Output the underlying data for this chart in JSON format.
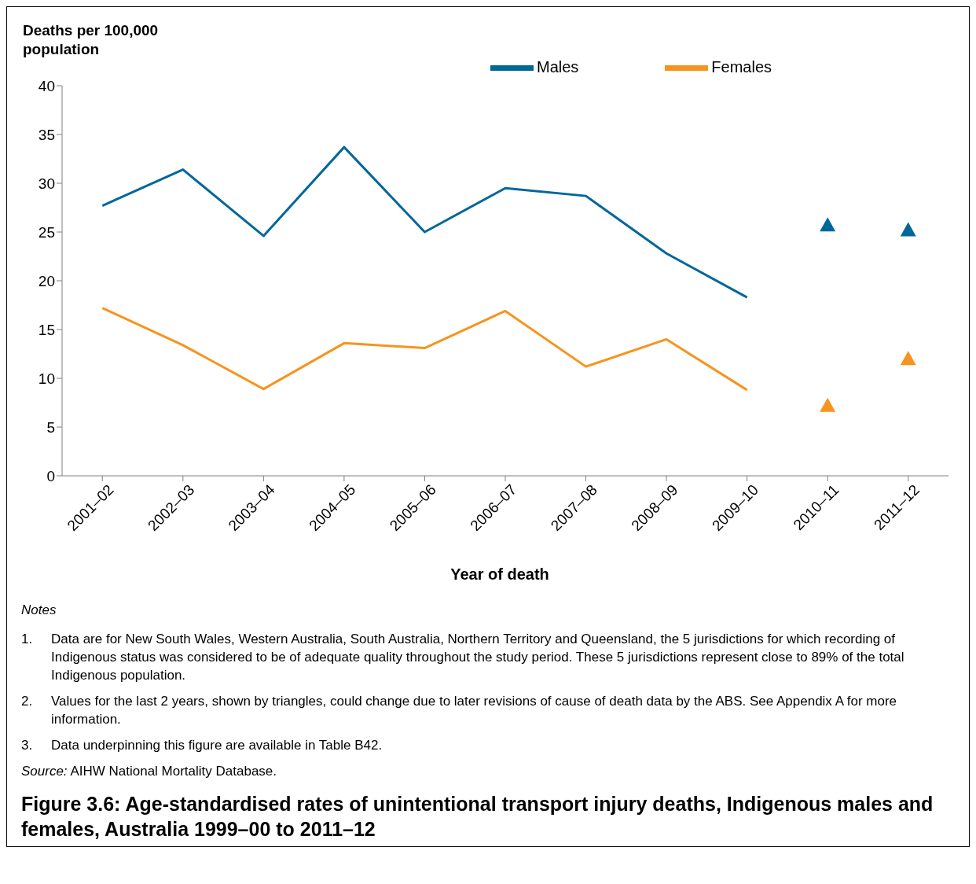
{
  "chart_data": {
    "type": "line",
    "title": "Figure 3.6: Age-standardised rates of unintentional transport injury deaths, Indigenous males and females, Australia 1999–00 to 2011–12",
    "ylabel": "Deaths per 100,000 population",
    "xlabel": "Year of death",
    "categories": [
      "2001–02",
      "2002–03",
      "2003–04",
      "2004–05",
      "2005–06",
      "2006–07",
      "2007–08",
      "2008–09",
      "2009–10",
      "2010–11",
      "2011–12"
    ],
    "series": [
      {
        "name": "Males",
        "marker": "none",
        "color": "#00679b",
        "values": [
          27.7,
          31.4,
          24.6,
          33.7,
          25.0,
          29.5,
          28.7,
          22.8,
          18.3,
          null,
          null
        ]
      },
      {
        "name": "Females",
        "marker": "none",
        "color": "#f7941d",
        "values": [
          17.2,
          13.4,
          8.9,
          13.6,
          13.1,
          16.9,
          11.2,
          14.0,
          8.8,
          null,
          null
        ]
      },
      {
        "type": "scatter",
        "marker": "triangle",
        "color": "#00679b",
        "values": [
          null,
          null,
          null,
          null,
          null,
          null,
          null,
          null,
          null,
          25.7,
          25.2
        ]
      },
      {
        "type": "scatter",
        "marker": "triangle",
        "color": "#f7941d",
        "values": [
          null,
          null,
          null,
          null,
          null,
          null,
          null,
          null,
          null,
          7.2,
          12.0
        ]
      }
    ],
    "ylim": [
      0,
      40
    ],
    "yticks": [
      0,
      5,
      10,
      15,
      20,
      25,
      30,
      35,
      40
    ],
    "grid": false,
    "legend": "top",
    "annotations": [
      "Notes",
      "1. Data are for New South Wales, Western Australia, South Australia, Northern Territory and Queensland, the 5 jurisdictions for which recording of Indigenous status was considered to be of adequate quality throughout the study period. These 5 jurisdictions represent close to 89% of the total Indigenous population.",
      "2. Values for the last 2 years, shown by triangles, could change due to later revisions of cause of death data by the ABS. See Appendix A for more information.",
      "3. Data underpinning this figure are available in Table B42.",
      "Source: AIHW National Mortality Database."
    ]
  }
}
